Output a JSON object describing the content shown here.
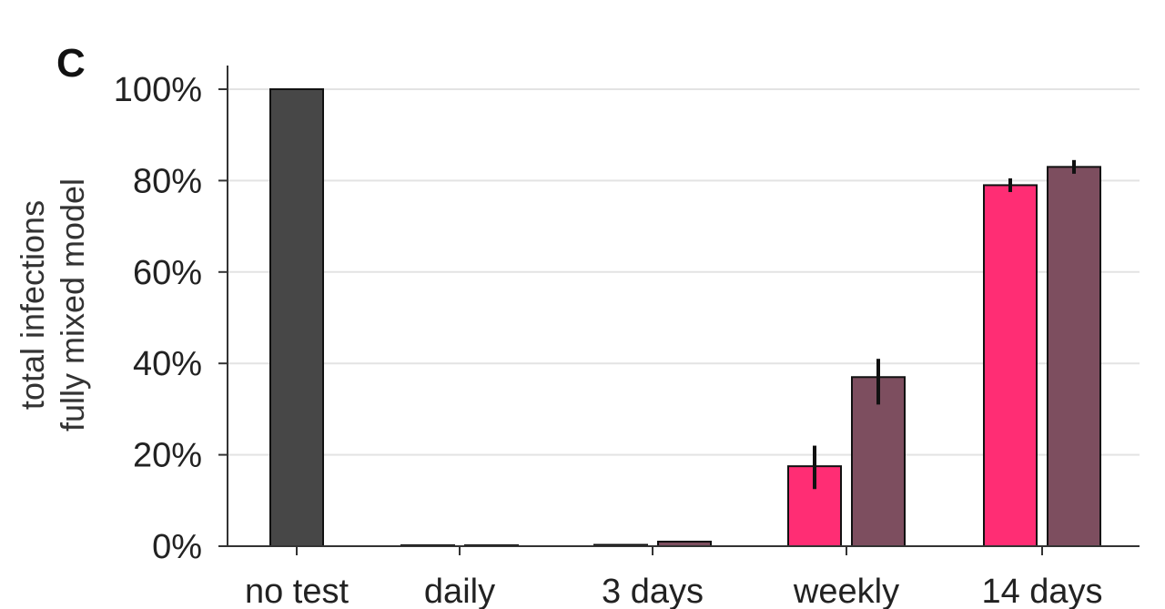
{
  "chart_data": {
    "type": "bar",
    "panel_label": "C",
    "ylabel_lines": [
      "total infections",
      "fully mixed model"
    ],
    "categories": [
      "no test",
      "daily",
      "3 days",
      "weekly",
      "14 days"
    ],
    "ylim": [
      0,
      100
    ],
    "yticks": [
      0,
      20,
      40,
      60,
      80,
      100
    ],
    "ytick_labels": [
      "0%",
      "20%",
      "40%",
      "60%",
      "80%",
      "100%"
    ],
    "grid": true,
    "series": [
      {
        "color": "#ff2d74",
        "values": [
          null,
          0.2,
          0.3,
          17.5,
          79
        ],
        "error_low": [
          null,
          0.2,
          0.3,
          12.5,
          77.5
        ],
        "error_high": [
          null,
          0.2,
          0.3,
          22,
          80.5
        ]
      },
      {
        "color": "#7d4e5f",
        "values": [
          null,
          0.2,
          1.0,
          37,
          83
        ],
        "error_low": [
          null,
          0.2,
          1.0,
          31,
          81.5
        ],
        "error_high": [
          null,
          0.2,
          1.0,
          41,
          84.5
        ]
      }
    ],
    "baseline": {
      "category": "no test",
      "value": 100,
      "color": "#474747"
    }
  }
}
